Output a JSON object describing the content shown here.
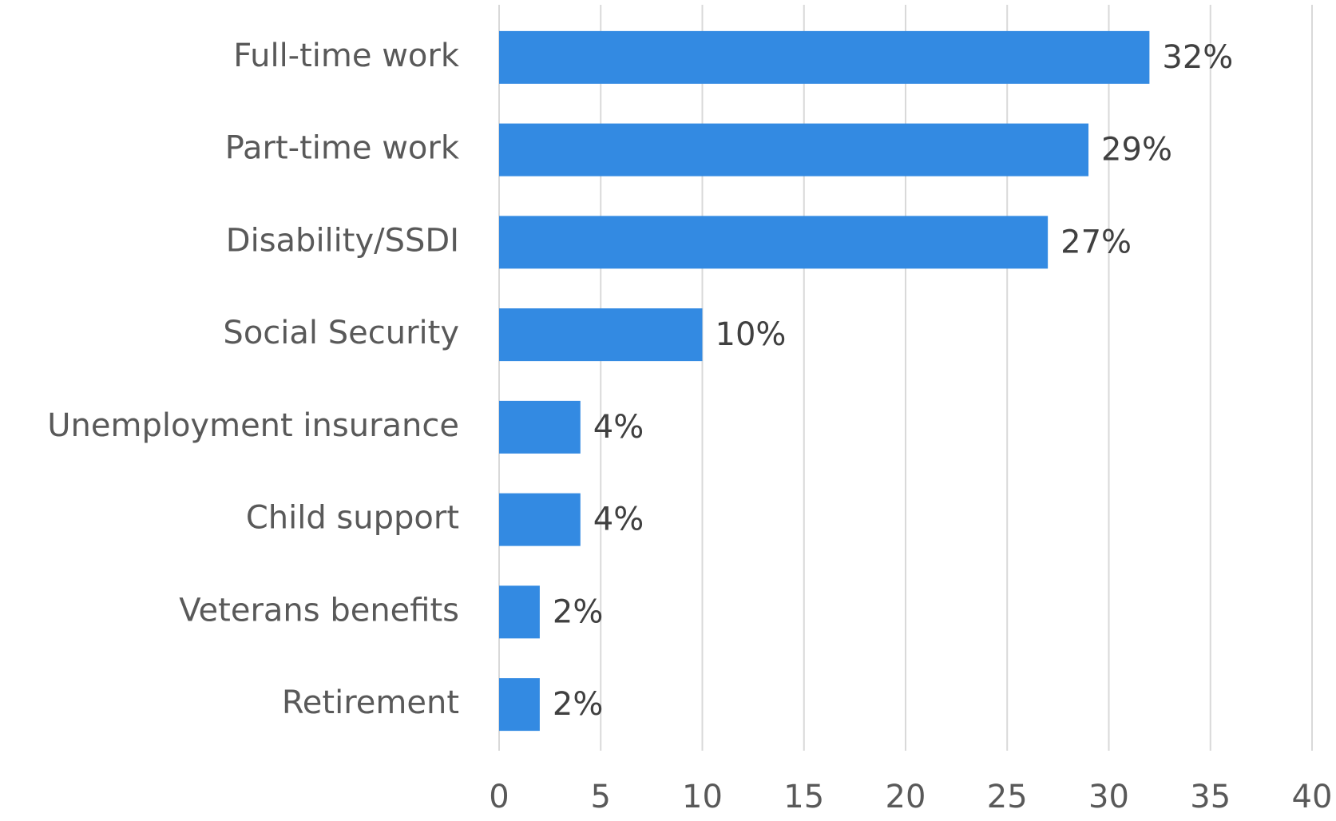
{
  "chart_data": {
    "type": "hbar",
    "categories": [
      "Full-time work",
      "Part-time work",
      "Disability/SSDI",
      "Social Security",
      "Unemployment insurance",
      "Child support",
      "Veterans benefits",
      "Retirement"
    ],
    "values": [
      32,
      29,
      27,
      10,
      4,
      4,
      2,
      2
    ],
    "value_labels": [
      "32%",
      "29%",
      "27%",
      "10%",
      "4%",
      "4%",
      "2%",
      "2%"
    ],
    "color": "#338ae2",
    "xlim": [
      0,
      40
    ],
    "xticks": [
      0,
      5,
      10,
      15,
      20,
      25,
      30,
      35,
      40
    ],
    "grid": true
  }
}
